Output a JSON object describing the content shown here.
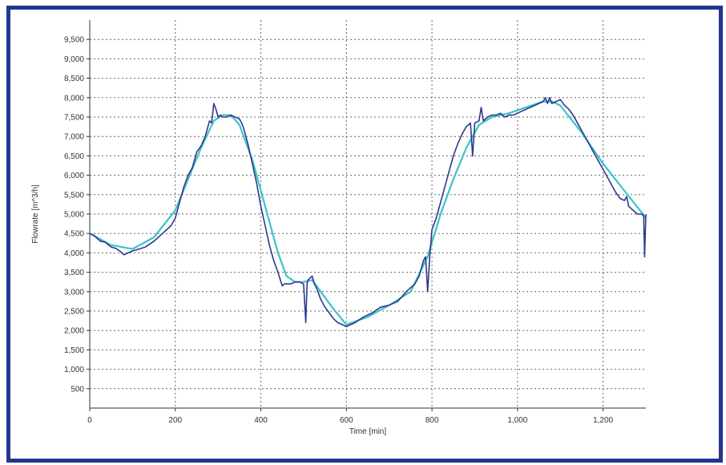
{
  "colors": {
    "frame": "#23368f",
    "measured": "#2d3a8c",
    "model": "#3cc3c9",
    "grid": "#666666"
  },
  "chart_data": {
    "type": "line",
    "title": "",
    "xlabel": "Time [min]",
    "ylabel": "Flowrate [m^3/h]",
    "xlim": [
      0,
      1300
    ],
    "ylim": [
      0,
      10000
    ],
    "x_ticks": [
      0,
      200,
      400,
      600,
      800,
      1000,
      1200
    ],
    "x_tick_labels": [
      "0",
      "200",
      "400",
      "600",
      "800",
      "1,000",
      "1,200"
    ],
    "y_ticks": [
      500,
      1000,
      1500,
      2000,
      2500,
      3000,
      3500,
      4000,
      4500,
      5000,
      5500,
      6000,
      6500,
      7000,
      7500,
      8000,
      8500,
      9000,
      9500
    ],
    "y_tick_labels": [
      "500",
      "1,000",
      "1,500",
      "2,000",
      "2,500",
      "3,000",
      "3,500",
      "4,000",
      "4,500",
      "5,000",
      "5,500",
      "6,000",
      "6,500",
      "7,000",
      "7,500",
      "8,000",
      "8,500",
      "9,000",
      "9,500"
    ],
    "grid": true,
    "series": [
      {
        "key": "measured",
        "color": "#2d3a8c",
        "x": [
          0,
          10,
          25,
          35,
          50,
          60,
          70,
          80,
          90,
          100,
          115,
          130,
          150,
          170,
          190,
          200,
          210,
          220,
          230,
          240,
          250,
          260,
          270,
          280,
          285,
          290,
          295,
          300,
          305,
          310,
          320,
          330,
          340,
          350,
          355,
          360,
          370,
          380,
          390,
          400,
          410,
          420,
          430,
          440,
          450,
          455,
          460,
          470,
          480,
          490,
          500,
          505,
          508,
          510,
          515,
          520,
          525,
          530,
          535,
          540,
          550,
          560,
          570,
          580,
          590,
          600,
          610,
          620,
          640,
          660,
          680,
          700,
          720,
          740,
          760,
          770,
          775,
          780,
          785,
          790,
          795,
          800,
          810,
          820,
          830,
          840,
          850,
          860,
          870,
          880,
          890,
          895,
          900,
          910,
          915,
          920,
          925,
          930,
          940,
          950,
          960,
          970,
          980,
          990,
          1000,
          1010,
          1020,
          1030,
          1040,
          1050,
          1060,
          1065,
          1070,
          1075,
          1080,
          1090,
          1100,
          1110,
          1120,
          1130,
          1140,
          1150,
          1160,
          1170,
          1180,
          1190,
          1200,
          1210,
          1220,
          1230,
          1240,
          1250,
          1255,
          1260,
          1270,
          1280,
          1290,
          1295,
          1297,
          1300
        ],
        "y": [
          4500,
          4450,
          4300,
          4280,
          4150,
          4120,
          4050,
          3950,
          4000,
          4050,
          4100,
          4150,
          4300,
          4500,
          4700,
          4900,
          5300,
          5700,
          6000,
          6200,
          6600,
          6750,
          7000,
          7400,
          7350,
          7850,
          7700,
          7500,
          7550,
          7500,
          7500,
          7550,
          7500,
          7450,
          7350,
          7200,
          6800,
          6300,
          5800,
          5200,
          4700,
          4200,
          3800,
          3500,
          3150,
          3200,
          3200,
          3200,
          3250,
          3250,
          3200,
          2200,
          3200,
          3300,
          3350,
          3400,
          3200,
          3100,
          2950,
          2800,
          2600,
          2450,
          2300,
          2200,
          2150,
          2100,
          2150,
          2200,
          2350,
          2450,
          2600,
          2650,
          2750,
          3000,
          3200,
          3400,
          3600,
          3800,
          3900,
          3000,
          3950,
          4600,
          4900,
          5300,
          5700,
          6100,
          6500,
          6800,
          7050,
          7250,
          7350,
          6500,
          7350,
          7400,
          7750,
          7400,
          7450,
          7500,
          7550,
          7550,
          7600,
          7500,
          7550,
          7550,
          7600,
          7650,
          7700,
          7750,
          7800,
          7850,
          7900,
          8000,
          7850,
          8000,
          7850,
          7900,
          7950,
          7800,
          7700,
          7550,
          7350,
          7150,
          6950,
          6750,
          6550,
          6350,
          6150,
          5950,
          5750,
          5550,
          5400,
          5350,
          5450,
          5200,
          5100,
          5000,
          5000,
          4950,
          3900,
          5000
        ]
      },
      {
        "key": "model",
        "color": "#3cc3c9",
        "x": [
          0,
          50,
          100,
          150,
          200,
          230,
          260,
          290,
          310,
          330,
          350,
          380,
          410,
          440,
          460,
          480,
          500,
          520,
          540,
          570,
          600,
          650,
          700,
          750,
          790,
          820,
          850,
          880,
          910,
          940,
          980,
          1020,
          1060,
          1080,
          1100,
          1150,
          1200,
          1250,
          1300
        ],
        "y": [
          4500,
          4200,
          4100,
          4400,
          5100,
          5900,
          6700,
          7400,
          7550,
          7550,
          7300,
          6400,
          5200,
          4000,
          3400,
          3250,
          3250,
          3300,
          3000,
          2550,
          2150,
          2350,
          2650,
          3000,
          3900,
          5000,
          5900,
          6700,
          7300,
          7500,
          7600,
          7750,
          7900,
          7900,
          7800,
          7100,
          6300,
          5600,
          4900
        ]
      }
    ]
  }
}
